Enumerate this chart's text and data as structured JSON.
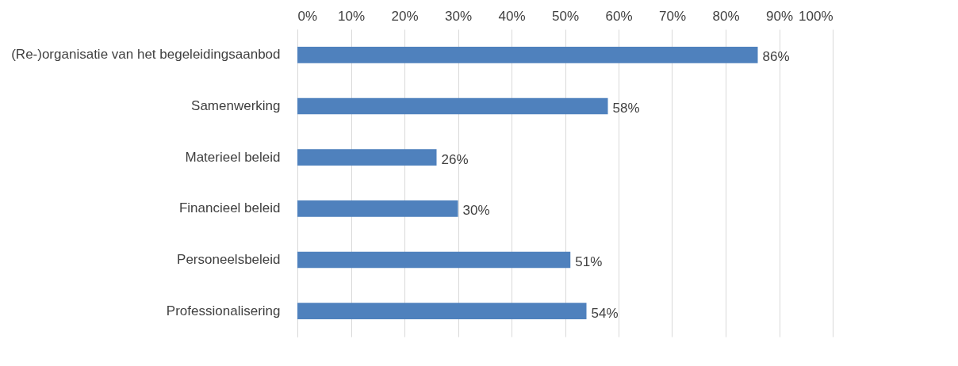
{
  "chart_data": {
    "type": "bar",
    "orientation": "horizontal",
    "categories": [
      "(Re-)organisatie van het begeleidingsaanbod",
      "Samenwerking",
      "Materieel beleid",
      "Financieel beleid",
      "Personeelsbeleid",
      "Professionalisering"
    ],
    "values": [
      86,
      58,
      26,
      30,
      51,
      54
    ],
    "value_labels": [
      "86%",
      "58%",
      "26%",
      "30%",
      "51%",
      "54%"
    ],
    "color": "#4f81bd",
    "xlim": [
      0,
      100
    ],
    "xticks": [
      {
        "value": 0,
        "label": "0%"
      },
      {
        "value": 10,
        "label": "10%"
      },
      {
        "value": 20,
        "label": "20%"
      },
      {
        "value": 30,
        "label": "30%"
      },
      {
        "value": 40,
        "label": "40%"
      },
      {
        "value": 50,
        "label": "50%"
      },
      {
        "value": 60,
        "label": "60%"
      },
      {
        "value": 70,
        "label": "70%"
      },
      {
        "value": 80,
        "label": "80%"
      },
      {
        "value": 90,
        "label": "90%"
      },
      {
        "value": 100,
        "label": "100%"
      }
    ],
    "grid": "x"
  }
}
